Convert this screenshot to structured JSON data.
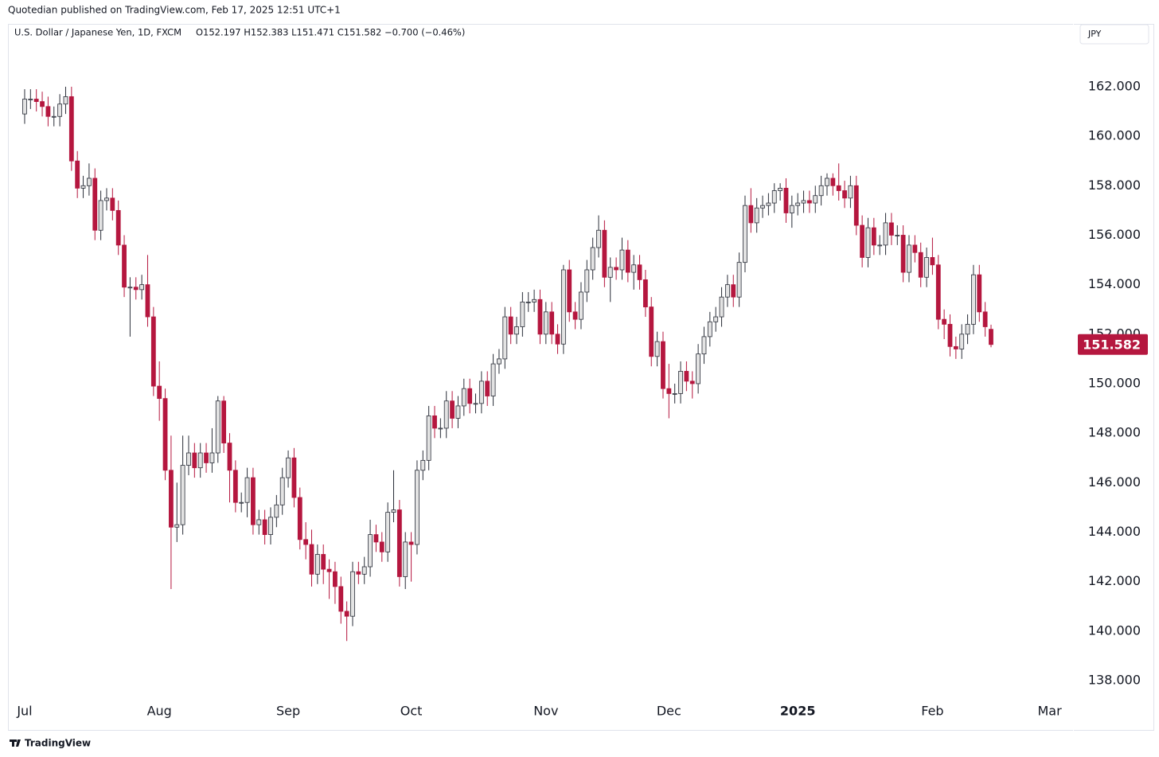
{
  "header": {
    "publisher": "Quotedian published on TradingView.com, Feb 17, 2025 12:51 UTC+1"
  },
  "footer": {
    "brand": "TradingView"
  },
  "chart_data": {
    "type": "candlestick",
    "title": "U.S. Dollar / Japanese Yen, 1D, FXCM",
    "ohlc_text": "O152.197 H152.383 L151.471 C151.582 −0.700 (−0.46%)",
    "currency": "JPY",
    "up_color": "#e3e3e3",
    "down_color": "#b5173f",
    "xlim": [
      -2.85,
      179
    ],
    "xticks": [
      {
        "value": 0,
        "label": "Jul"
      },
      {
        "value": 23,
        "label": "Aug"
      },
      {
        "value": 45,
        "label": "Sep"
      },
      {
        "value": 66,
        "label": "Oct"
      },
      {
        "value": 89,
        "label": "Nov"
      },
      {
        "value": 110,
        "label": "Dec"
      },
      {
        "value": 132,
        "label": "2025"
      },
      {
        "value": 155,
        "label": "Feb"
      },
      {
        "value": 175,
        "label": "Mar"
      }
    ],
    "ylim": [
      137.26,
      164.54
    ],
    "yticks": [
      {
        "value": 138,
        "label": "138.000"
      },
      {
        "value": 140,
        "label": "140.000"
      },
      {
        "value": 142,
        "label": "142.000"
      },
      {
        "value": 144,
        "label": "144.000"
      },
      {
        "value": 146,
        "label": "146.000"
      },
      {
        "value": 148,
        "label": "148.000"
      },
      {
        "value": 150,
        "label": "150.000"
      },
      {
        "value": 152,
        "label": "152.000"
      },
      {
        "value": 154,
        "label": "154.000"
      },
      {
        "value": 156,
        "label": "156.000"
      },
      {
        "value": 158,
        "label": "158.000"
      },
      {
        "value": 160,
        "label": "160.000"
      },
      {
        "value": 162,
        "label": "162.000"
      }
    ],
    "open": [
      160.9,
      161.5,
      161.5,
      161.4,
      161.2,
      160.8,
      160.8,
      161.3,
      161.6,
      159.0,
      157.9,
      158.0,
      158.3,
      156.2,
      157.4,
      157.5,
      157.0,
      155.6,
      153.9,
      153.9,
      153.8,
      154.0,
      152.7,
      149.9,
      149.4,
      146.5,
      144.2,
      144.3,
      146.7,
      147.2,
      146.6,
      147.2,
      146.8,
      147.2,
      149.3,
      147.6,
      146.5,
      145.2,
      145.2,
      146.2,
      144.3,
      144.5,
      143.9,
      144.6,
      145.1,
      146.2,
      147.0,
      145.4,
      143.7,
      143.5,
      142.3,
      143.1,
      142.5,
      142.4,
      141.8,
      140.8,
      140.6,
      142.4,
      142.3,
      142.6,
      143.9,
      143.6,
      143.2,
      144.8,
      144.9,
      142.2,
      143.6,
      143.5,
      146.5,
      146.9,
      148.7,
      148.2,
      148.2,
      149.3,
      148.6,
      149.1,
      149.8,
      149.2,
      149.2,
      150.1,
      149.5,
      150.8,
      151.0,
      152.7,
      152.0,
      152.3,
      153.3,
      153.3,
      153.4,
      152.0,
      152.9,
      152.0,
      151.6,
      154.6,
      152.9,
      152.6,
      153.7,
      154.6,
      155.5,
      156.2,
      154.3,
      154.7,
      154.6,
      155.4,
      154.5,
      154.8,
      154.2,
      153.1,
      151.1,
      151.7,
      149.8,
      149.6,
      149.6,
      150.5,
      150.1,
      150.0,
      151.2,
      151.9,
      152.5,
      152.7,
      153.5,
      154.0,
      153.5,
      154.9,
      157.2,
      156.5,
      157.1,
      157.2,
      157.3,
      157.8,
      157.9,
      156.9,
      157.2,
      157.3,
      157.4,
      157.3,
      157.6,
      158.0,
      158.3,
      158.0,
      157.8,
      157.5,
      158.0,
      156.4,
      155.1,
      156.3,
      155.6,
      155.6,
      156.5,
      156.0,
      156.0,
      154.5,
      155.6,
      155.3,
      154.3,
      155.1,
      154.8,
      152.6,
      152.4,
      151.5,
      151.4,
      152.0,
      152.4,
      154.4,
      152.9,
      152.197
    ],
    "high": [
      161.9,
      161.9,
      161.9,
      161.8,
      161.6,
      161.2,
      161.7,
      162.0,
      162.0,
      159.4,
      158.4,
      158.9,
      158.7,
      157.8,
      157.9,
      157.9,
      157.4,
      156.0,
      154.3,
      154.3,
      154.4,
      155.2,
      153.1,
      150.9,
      149.8,
      147.9,
      146.0,
      147.9,
      147.9,
      147.6,
      147.6,
      147.6,
      148.2,
      149.5,
      149.5,
      148.0,
      146.9,
      145.6,
      146.6,
      146.6,
      144.9,
      144.9,
      145.0,
      145.5,
      146.6,
      147.3,
      147.4,
      145.8,
      144.4,
      144.1,
      143.5,
      143.5,
      142.9,
      142.8,
      142.2,
      141.2,
      142.8,
      142.8,
      143.0,
      144.5,
      144.3,
      144.0,
      145.2,
      146.5,
      145.3,
      144.0,
      144.0,
      146.9,
      147.3,
      149.1,
      149.1,
      148.6,
      149.7,
      149.7,
      149.5,
      150.2,
      150.2,
      149.6,
      150.5,
      150.5,
      151.2,
      151.4,
      153.1,
      153.1,
      152.7,
      153.7,
      153.7,
      153.8,
      153.8,
      153.3,
      153.3,
      152.4,
      154.8,
      155.0,
      153.3,
      154.1,
      155.0,
      155.9,
      156.8,
      156.6,
      155.1,
      155.1,
      155.9,
      155.8,
      155.2,
      155.2,
      154.6,
      153.5,
      152.1,
      152.1,
      150.8,
      150.0,
      150.9,
      150.9,
      150.5,
      151.6,
      152.3,
      152.9,
      153.1,
      153.9,
      154.4,
      154.4,
      155.3,
      157.6,
      157.9,
      157.5,
      157.6,
      157.7,
      158.1,
      158.1,
      158.3,
      157.6,
      157.7,
      157.8,
      157.8,
      158.0,
      158.4,
      158.5,
      158.5,
      158.9,
      158.2,
      158.4,
      158.4,
      156.8,
      156.7,
      156.7,
      156.0,
      156.9,
      156.9,
      156.4,
      156.4,
      156.0,
      156.0,
      155.7,
      155.5,
      155.9,
      155.2,
      153.0,
      152.8,
      151.9,
      152.4,
      152.8,
      154.8,
      154.8,
      153.3,
      152.383
    ],
    "low": [
      160.5,
      161.1,
      161.0,
      160.8,
      160.4,
      160.4,
      160.4,
      160.9,
      158.6,
      157.5,
      157.5,
      157.6,
      155.8,
      155.8,
      157.0,
      156.6,
      155.2,
      153.5,
      151.9,
      153.4,
      153.4,
      152.3,
      149.5,
      148.5,
      146.1,
      141.7,
      143.6,
      143.9,
      146.3,
      146.2,
      146.2,
      146.4,
      146.4,
      146.8,
      147.2,
      145.2,
      144.8,
      144.8,
      144.6,
      143.9,
      143.9,
      143.5,
      143.5,
      144.2,
      144.7,
      145.8,
      145.0,
      143.3,
      142.9,
      141.8,
      141.9,
      141.9,
      141.3,
      141.1,
      140.3,
      139.6,
      140.2,
      141.9,
      141.9,
      142.2,
      143.2,
      142.8,
      142.8,
      144.4,
      141.8,
      141.7,
      142.0,
      143.1,
      146.1,
      146.5,
      147.8,
      147.8,
      147.8,
      148.2,
      148.2,
      148.7,
      148.8,
      148.8,
      148.8,
      149.1,
      149.1,
      150.4,
      150.6,
      151.6,
      151.6,
      151.9,
      152.9,
      152.9,
      151.6,
      151.6,
      151.6,
      151.2,
      151.2,
      152.5,
      152.2,
      152.2,
      153.3,
      154.2,
      155.1,
      153.9,
      153.3,
      154.2,
      154.2,
      154.1,
      153.8,
      153.8,
      152.7,
      150.7,
      150.7,
      149.4,
      148.6,
      149.2,
      149.2,
      149.7,
      149.4,
      149.6,
      150.8,
      151.5,
      152.1,
      152.3,
      153.1,
      153.1,
      153.1,
      154.5,
      156.1,
      156.1,
      156.7,
      156.8,
      156.9,
      157.4,
      156.5,
      156.3,
      156.8,
      156.9,
      156.9,
      156.9,
      157.2,
      157.6,
      157.6,
      157.4,
      157.1,
      157.1,
      156.0,
      154.7,
      154.7,
      155.2,
      155.2,
      155.2,
      155.6,
      155.6,
      154.1,
      154.1,
      154.9,
      153.9,
      153.9,
      154.4,
      152.2,
      151.8,
      151.1,
      151.0,
      151.0,
      151.6,
      152.0,
      152.5,
      151.9,
      151.471
    ],
    "close": [
      161.5,
      161.5,
      161.4,
      161.2,
      160.8,
      160.8,
      161.3,
      161.6,
      159.0,
      157.9,
      158.0,
      158.3,
      156.2,
      157.4,
      157.5,
      157.0,
      155.6,
      153.9,
      153.9,
      153.8,
      154.0,
      152.7,
      149.9,
      149.4,
      146.5,
      144.2,
      144.3,
      146.7,
      147.2,
      146.6,
      147.2,
      146.8,
      147.2,
      149.3,
      147.6,
      146.5,
      145.2,
      145.2,
      146.2,
      144.3,
      144.5,
      143.9,
      144.6,
      145.1,
      146.2,
      147.0,
      145.4,
      143.7,
      143.5,
      142.3,
      143.1,
      142.5,
      142.4,
      141.8,
      140.8,
      140.6,
      142.4,
      142.3,
      142.6,
      143.9,
      143.6,
      143.2,
      144.8,
      144.9,
      142.2,
      143.6,
      143.5,
      146.5,
      146.9,
      148.7,
      148.2,
      148.2,
      149.3,
      148.6,
      149.1,
      149.8,
      149.2,
      149.2,
      150.1,
      149.5,
      150.8,
      151.0,
      152.7,
      152.0,
      152.3,
      153.3,
      153.3,
      153.4,
      152.0,
      152.9,
      152.0,
      151.6,
      154.6,
      152.9,
      152.6,
      153.7,
      154.6,
      155.5,
      156.2,
      154.3,
      154.7,
      154.6,
      155.4,
      154.5,
      154.8,
      154.2,
      153.1,
      151.1,
      151.7,
      149.8,
      149.6,
      149.6,
      150.5,
      150.1,
      150.0,
      151.2,
      151.9,
      152.5,
      152.7,
      153.5,
      154.0,
      153.5,
      154.9,
      157.2,
      156.5,
      157.1,
      157.2,
      157.3,
      157.8,
      157.9,
      156.9,
      157.2,
      157.3,
      157.4,
      157.3,
      157.6,
      158.0,
      158.3,
      158.0,
      157.8,
      157.5,
      158.0,
      156.4,
      155.1,
      156.3,
      155.6,
      155.6,
      156.5,
      156.0,
      156.0,
      154.5,
      155.6,
      155.3,
      154.3,
      155.1,
      154.8,
      152.6,
      152.4,
      151.5,
      151.4,
      152.0,
      152.4,
      154.4,
      152.9,
      152.3,
      151.582
    ]
  }
}
